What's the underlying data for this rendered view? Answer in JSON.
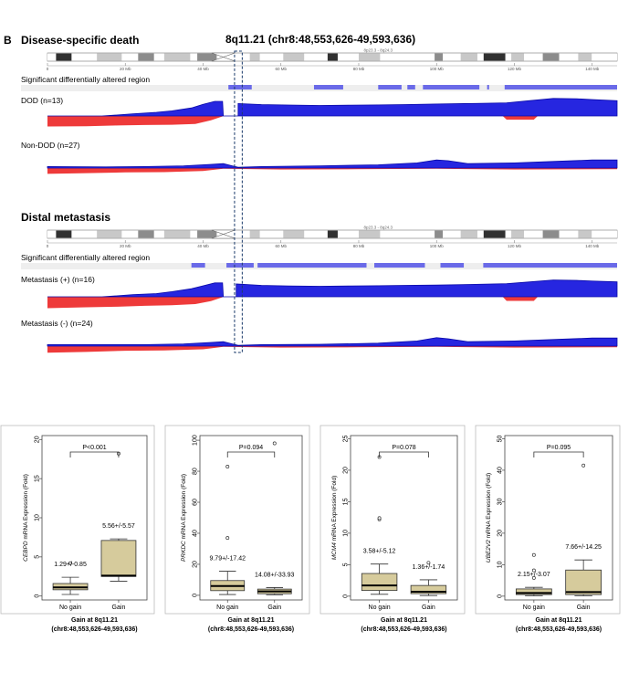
{
  "panel_letter": "B",
  "header": {
    "section1_title": "Disease-specific death",
    "region_title": "8q11.21 (chr8:48,553,626-49,593,636)",
    "section2_title": "Distal metastasis"
  },
  "ideogram": {
    "band_label": "8p23.3 - 8q24.3",
    "ticks": [
      "0",
      "20 Mb",
      "40 Mb",
      "60 Mb",
      "80 Mb",
      "100 Mb",
      "120 Mb",
      "140 Mb"
    ],
    "tick_values": [
      0,
      20,
      40,
      60,
      80,
      100,
      120,
      140
    ],
    "chrom_length_mb": 146.4,
    "centromere_mb": 45.2,
    "highlight_mb": [
      48.55,
      49.59
    ],
    "bands": [
      {
        "start": 0,
        "end": 2.2,
        "stain": "white"
      },
      {
        "start": 2.2,
        "end": 6.2,
        "stain": "dark"
      },
      {
        "start": 6.2,
        "end": 12.7,
        "stain": "white"
      },
      {
        "start": 12.7,
        "end": 19.1,
        "stain": "light"
      },
      {
        "start": 19.1,
        "end": 23.3,
        "stain": "white"
      },
      {
        "start": 23.3,
        "end": 27.4,
        "stain": "mid"
      },
      {
        "start": 27.4,
        "end": 30,
        "stain": "white"
      },
      {
        "start": 30,
        "end": 36.7,
        "stain": "light"
      },
      {
        "start": 36.7,
        "end": 38.5,
        "stain": "white"
      },
      {
        "start": 38.5,
        "end": 43.5,
        "stain": "mid"
      },
      {
        "start": 48,
        "end": 52,
        "stain": "white"
      },
      {
        "start": 52,
        "end": 54.6,
        "stain": "light"
      },
      {
        "start": 54.6,
        "end": 60.6,
        "stain": "white"
      },
      {
        "start": 60.6,
        "end": 66,
        "stain": "light"
      },
      {
        "start": 66,
        "end": 72,
        "stain": "white"
      },
      {
        "start": 72,
        "end": 74.6,
        "stain": "dark"
      },
      {
        "start": 74.6,
        "end": 80,
        "stain": "white"
      },
      {
        "start": 80,
        "end": 85.5,
        "stain": "light"
      },
      {
        "start": 85.5,
        "end": 93.3,
        "stain": "white"
      },
      {
        "start": 93.3,
        "end": 99.5,
        "stain": "white"
      },
      {
        "start": 99.5,
        "end": 101.6,
        "stain": "mid"
      },
      {
        "start": 101.6,
        "end": 106.2,
        "stain": "white"
      },
      {
        "start": 106.2,
        "end": 110.5,
        "stain": "light"
      },
      {
        "start": 110.5,
        "end": 112.1,
        "stain": "white"
      },
      {
        "start": 112.1,
        "end": 117.7,
        "stain": "dark"
      },
      {
        "start": 117.7,
        "end": 119.2,
        "stain": "white"
      },
      {
        "start": 119.2,
        "end": 122.5,
        "stain": "light"
      },
      {
        "start": 122.5,
        "end": 127.3,
        "stain": "white"
      },
      {
        "start": 127.3,
        "end": 131.5,
        "stain": "mid"
      },
      {
        "start": 131.5,
        "end": 136.4,
        "stain": "white"
      },
      {
        "start": 136.4,
        "end": 139.9,
        "stain": "light"
      },
      {
        "start": 139.9,
        "end": 146.4,
        "stain": "white"
      }
    ]
  },
  "sections": [
    {
      "sig_label": "Significant differentially altered region",
      "sig_regions_mb": [
        [
          46.5,
          52.5
        ],
        [
          68.5,
          76
        ],
        [
          85,
          91
        ],
        [
          92.5,
          94.5
        ],
        [
          96.5,
          111
        ],
        [
          113,
          113.5
        ],
        [
          117.5,
          146.4
        ]
      ],
      "tracks": [
        {
          "label": "DOD (n=13)",
          "scale": 16,
          "gain": [
            [
              0,
              0
            ],
            [
              14,
              0
            ],
            [
              17,
              0.05
            ],
            [
              22,
              0.15
            ],
            [
              28,
              0.25
            ],
            [
              32,
              0.35
            ],
            [
              37,
              0.55
            ],
            [
              40,
              0.8
            ],
            [
              43,
              1.0
            ],
            [
              45,
              1.0
            ],
            [
              45.2,
              0
            ],
            [
              49,
              0
            ],
            [
              49,
              0.85
            ],
            [
              55,
              0.78
            ],
            [
              62,
              0.75
            ],
            [
              70,
              0.72
            ],
            [
              78,
              0.74
            ],
            [
              85,
              0.76
            ],
            [
              92,
              0.78
            ],
            [
              100,
              0.82
            ],
            [
              110,
              0.86
            ],
            [
              118,
              0.9
            ],
            [
              124,
              1.05
            ],
            [
              130,
              1.2
            ],
            [
              136,
              1.18
            ],
            [
              140,
              1.12
            ],
            [
              146.4,
              1.05
            ]
          ],
          "loss": [
            [
              0,
              0.72
            ],
            [
              10,
              0.7
            ],
            [
              18,
              0.65
            ],
            [
              25,
              0.62
            ],
            [
              32,
              0.6
            ],
            [
              38,
              0.55
            ],
            [
              42,
              0.3
            ],
            [
              44.8,
              0.05
            ],
            [
              45.2,
              0
            ],
            [
              117,
              0
            ],
            [
              118,
              0.25
            ],
            [
              125,
              0.25
            ],
            [
              126,
              0
            ]
          ]
        },
        {
          "label": "Non-DOD (n=27)",
          "scale": 16,
          "gain": [
            [
              0,
              0.1
            ],
            [
              15,
              0.08
            ],
            [
              25,
              0.1
            ],
            [
              35,
              0.15
            ],
            [
              42,
              0.25
            ],
            [
              45.2,
              0.3
            ],
            [
              49,
              0.05
            ],
            [
              55,
              0.1
            ],
            [
              70,
              0.15
            ],
            [
              85,
              0.22
            ],
            [
              95,
              0.35
            ],
            [
              100,
              0.55
            ],
            [
              103,
              0.5
            ],
            [
              108,
              0.3
            ],
            [
              120,
              0.35
            ],
            [
              130,
              0.45
            ],
            [
              140,
              0.55
            ],
            [
              146.4,
              0.55
            ]
          ],
          "loss": [
            [
              0,
              0.4
            ],
            [
              10,
              0.35
            ],
            [
              20,
              0.3
            ],
            [
              30,
              0.28
            ],
            [
              40,
              0.2
            ],
            [
              45.2,
              0.05
            ],
            [
              60,
              0.1
            ],
            [
              80,
              0.08
            ],
            [
              100,
              0.05
            ],
            [
              120,
              0.1
            ],
            [
              146.4,
              0.08
            ]
          ]
        }
      ]
    },
    {
      "sig_label": "Significant differentially altered region",
      "sig_regions_mb": [
        [
          37,
          40.5
        ],
        [
          46,
          53
        ],
        [
          54,
          82
        ],
        [
          84,
          97
        ],
        [
          101,
          107
        ],
        [
          112,
          146.4
        ]
      ],
      "tracks": [
        {
          "label": "Metastasis (+) (n=16)",
          "scale": 16,
          "gain": [
            [
              0,
              0
            ],
            [
              14,
              0
            ],
            [
              17,
              0.05
            ],
            [
              22,
              0.15
            ],
            [
              28,
              0.22
            ],
            [
              32,
              0.35
            ],
            [
              37,
              0.55
            ],
            [
              40,
              0.75
            ],
            [
              43,
              0.95
            ],
            [
              45,
              0.95
            ],
            [
              45.2,
              0
            ],
            [
              48.5,
              0
            ],
            [
              48.5,
              0.88
            ],
            [
              55,
              0.78
            ],
            [
              62,
              0.74
            ],
            [
              70,
              0.72
            ],
            [
              78,
              0.74
            ],
            [
              85,
              0.76
            ],
            [
              92,
              0.78
            ],
            [
              100,
              0.8
            ],
            [
              110,
              0.85
            ],
            [
              118,
              0.9
            ],
            [
              124,
              1.02
            ],
            [
              130,
              1.15
            ],
            [
              136,
              1.12
            ],
            [
              140,
              1.08
            ],
            [
              146.4,
              1.02
            ]
          ],
          "loss": [
            [
              0,
              0.78
            ],
            [
              10,
              0.72
            ],
            [
              18,
              0.68
            ],
            [
              25,
              0.62
            ],
            [
              32,
              0.58
            ],
            [
              38,
              0.5
            ],
            [
              42,
              0.3
            ],
            [
              44.8,
              0.05
            ],
            [
              45.2,
              0
            ],
            [
              117,
              0
            ],
            [
              118,
              0.28
            ],
            [
              125,
              0.28
            ],
            [
              126,
              0
            ]
          ]
        },
        {
          "label": "Metastasis (-) (n=24)",
          "scale": 16,
          "gain": [
            [
              0,
              0.1
            ],
            [
              15,
              0.1
            ],
            [
              25,
              0.1
            ],
            [
              35,
              0.15
            ],
            [
              42,
              0.25
            ],
            [
              45.2,
              0.3
            ],
            [
              49,
              0.05
            ],
            [
              55,
              0.1
            ],
            [
              70,
              0.12
            ],
            [
              85,
              0.2
            ],
            [
              95,
              0.35
            ],
            [
              100,
              0.58
            ],
            [
              103,
              0.5
            ],
            [
              108,
              0.3
            ],
            [
              120,
              0.35
            ],
            [
              130,
              0.45
            ],
            [
              140,
              0.55
            ],
            [
              146.4,
              0.55
            ]
          ],
          "loss": [
            [
              0,
              0.45
            ],
            [
              10,
              0.4
            ],
            [
              20,
              0.32
            ],
            [
              30,
              0.3
            ],
            [
              40,
              0.22
            ],
            [
              45.2,
              0.05
            ],
            [
              60,
              0.1
            ],
            [
              80,
              0.08
            ],
            [
              100,
              0.05
            ],
            [
              120,
              0.1
            ],
            [
              146.4,
              0.08
            ]
          ]
        }
      ]
    }
  ],
  "box_common": {
    "categories": [
      "No gain",
      "Gain"
    ],
    "xlabel_line1": "Gain at 8q11.21",
    "xlabel_line2": "(chr8:48,553,626-49,593,636)"
  },
  "chart_data": [
    {
      "type": "box",
      "gene": "CEBPD",
      "ylabel_suffix": " mRNA Expression (Fold)",
      "categories": [
        "No gain",
        "Gain"
      ],
      "ylim": [
        -0.5,
        20.5
      ],
      "yticks": [
        0,
        5,
        10,
        15,
        20
      ],
      "pvalue": "P<0.001",
      "boxes": [
        {
          "min": 0.2,
          "q1": 0.8,
          "median": 1.1,
          "q3": 1.6,
          "max": 2.4,
          "outliers": [
            4.2
          ],
          "annotation": "1.29+/-0.85"
        },
        {
          "min": 1.9,
          "q1": 2.5,
          "median": 2.6,
          "q3": 7.1,
          "max": 7.3,
          "outliers": [
            18.2
          ],
          "annotation": "5.56+/-5.57"
        }
      ]
    },
    {
      "type": "box",
      "gene": "PRKDC",
      "ylabel_suffix": " mRNA Expression (Fold)",
      "categories": [
        "No gain",
        "Gain"
      ],
      "ylim": [
        -3,
        103
      ],
      "yticks": [
        0,
        20,
        40,
        60,
        80,
        100
      ],
      "pvalue": "P=0.094",
      "boxes": [
        {
          "min": 0.5,
          "q1": 3.0,
          "median": 6.0,
          "q3": 9.5,
          "max": 15.5,
          "outliers": [
            37,
            83
          ],
          "annotation": "9.79+/-17.42"
        },
        {
          "min": 0.3,
          "q1": 1.0,
          "median": 2.5,
          "q3": 4.0,
          "max": 5.0,
          "outliers": [
            98
          ],
          "annotation": "14.08+/-33.93"
        }
      ]
    },
    {
      "type": "box",
      "gene": "MCM4",
      "ylabel_suffix": " mRNA Expression (Fold)",
      "categories": [
        "No gain",
        "Gain"
      ],
      "ylim": [
        -0.6,
        25.5
      ],
      "yticks": [
        0,
        5,
        10,
        15,
        20,
        25
      ],
      "pvalue": "P=0.078",
      "boxes": [
        {
          "min": 0.3,
          "q1": 0.9,
          "median": 1.7,
          "q3": 3.6,
          "max": 5.1,
          "outliers": [
            12.2,
            12.4,
            22.1
          ],
          "annotation": "3.58+/-5.12"
        },
        {
          "min": 0.1,
          "q1": 0.4,
          "median": 0.7,
          "q3": 1.7,
          "max": 2.6,
          "outliers": [
            5.3
          ],
          "annotation": "1.36+/-1.74"
        }
      ]
    },
    {
      "type": "box",
      "gene": "UBE2V2",
      "ylabel_suffix": " mRNA Expression (Fold)",
      "categories": [
        "No gain",
        "Gain"
      ],
      "ylim": [
        -1.2,
        51
      ],
      "yticks": [
        0,
        10,
        20,
        30,
        40,
        50
      ],
      "pvalue": "P=0.095",
      "boxes": [
        {
          "min": 0.1,
          "q1": 0.5,
          "median": 1.0,
          "q3": 2.3,
          "max": 2.8,
          "outliers": [
            5.8,
            8.2,
            13.1
          ],
          "annotation": "2.15+/-3.07"
        },
        {
          "min": 0.1,
          "q1": 0.5,
          "median": 1.3,
          "q3": 8.3,
          "max": 11.5,
          "outliers": [
            41.5
          ],
          "annotation": "7.66+/-14.25"
        }
      ]
    }
  ],
  "colors": {
    "gain": "#2626e0",
    "gain_dark": "#0a0aa8",
    "loss": "#ee3a3a",
    "sig_band": "#eeeeee",
    "sig_region": "#6a6ae8",
    "box_fill": "#d6cb9c",
    "highlight_box": "#1a3a6a"
  }
}
